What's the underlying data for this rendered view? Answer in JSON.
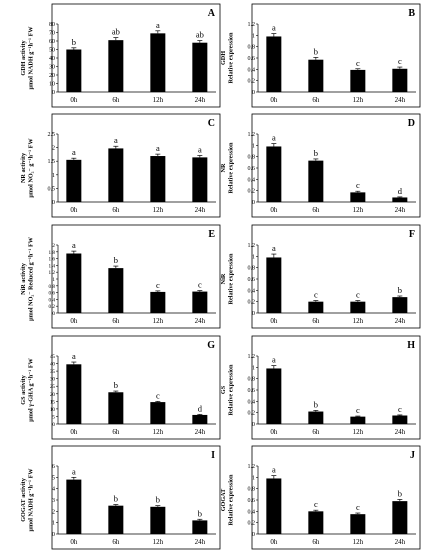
{
  "chart_data": [
    {
      "panel": "A",
      "type": "bar",
      "categories": [
        "0h",
        "6h",
        "12h",
        "24h"
      ],
      "values": [
        50,
        61,
        69,
        58
      ],
      "errors": [
        2,
        3,
        3,
        2.5
      ],
      "letters": [
        "b",
        "ab",
        "a",
        "ab"
      ],
      "ylabel": "GDH activity\nμmol NADH g⁻¹h⁻¹ FW",
      "ylim": [
        0,
        80
      ],
      "yticks": [
        0,
        10,
        20,
        30,
        40,
        50,
        60,
        70,
        80
      ],
      "ytick_labels": [
        "0",
        "10",
        "20",
        "30",
        "40",
        "50",
        "60",
        "70",
        "80"
      ]
    },
    {
      "panel": "B",
      "type": "bar",
      "categories": [
        "0h",
        "6h",
        "12h",
        "24h"
      ],
      "values": [
        0.98,
        0.57,
        0.39,
        0.41
      ],
      "errors": [
        0.05,
        0.04,
        0.02,
        0.03
      ],
      "letters": [
        "a",
        "b",
        "c",
        "c"
      ],
      "ylabel": "GDH\nRelative expression",
      "ylim": [
        0,
        1.2
      ],
      "yticks": [
        0,
        0.2,
        0.4,
        0.6,
        0.8,
        1,
        1.2
      ],
      "ytick_labels": [
        "0",
        "0.2",
        "0.4",
        "0.6",
        "0.8",
        "1",
        "1.2"
      ]
    },
    {
      "panel": "C",
      "type": "bar",
      "categories": [
        "0h",
        "6h",
        "12h",
        "24h"
      ],
      "values": [
        1.55,
        1.97,
        1.69,
        1.64
      ],
      "errors": [
        0.06,
        0.08,
        0.07,
        0.07
      ],
      "letters": [
        "a",
        "a",
        "a",
        "a"
      ],
      "ylabel": "NR activity\nμmol NO₂⁻ g⁻¹h⁻¹ FW",
      "ylim": [
        0,
        2.5
      ],
      "yticks": [
        0,
        0.5,
        1,
        1.5,
        2,
        2.5
      ],
      "ytick_labels": [
        "0",
        "0.5",
        "1",
        "1.5",
        "2",
        "2.5"
      ]
    },
    {
      "panel": "D",
      "type": "bar",
      "categories": [
        "0h",
        "6h",
        "12h",
        "24h"
      ],
      "values": [
        0.98,
        0.73,
        0.17,
        0.08
      ],
      "errors": [
        0.05,
        0.03,
        0.02,
        0.01
      ],
      "letters": [
        "a",
        "b",
        "c",
        "d"
      ],
      "ylabel": "NR\nRelative expression",
      "ylim": [
        0,
        1.2
      ],
      "yticks": [
        0,
        0.2,
        0.4,
        0.6,
        0.8,
        1,
        1.2
      ],
      "ytick_labels": [
        "0",
        "0.2",
        "0.4",
        "0.6",
        "0.8",
        "1",
        "1.2"
      ]
    },
    {
      "panel": "E",
      "type": "bar",
      "categories": [
        "0h",
        "6h",
        "12h",
        "24h"
      ],
      "values": [
        1.75,
        1.32,
        0.62,
        0.63
      ],
      "errors": [
        0.07,
        0.06,
        0.03,
        0.03
      ],
      "letters": [
        "a",
        "b",
        "c",
        "c"
      ],
      "ylabel": "NiR activity\nμmol NO₂⁻ Reduced g⁻¹h⁻¹ FW",
      "ylim": [
        0,
        2
      ],
      "yticks": [
        0,
        0.2,
        0.4,
        0.6,
        0.8,
        1,
        1.2,
        1.4,
        1.6,
        1.8,
        2
      ],
      "ytick_labels": [
        "0",
        "0.2",
        "0.4",
        "0.6",
        "0.8",
        "1",
        "1.2",
        "1.4",
        "1.6",
        "1.8",
        "2"
      ]
    },
    {
      "panel": "F",
      "type": "bar",
      "categories": [
        "0h",
        "6h",
        "12h",
        "24h"
      ],
      "values": [
        0.98,
        0.2,
        0.2,
        0.28
      ],
      "errors": [
        0.06,
        0.02,
        0.02,
        0.02
      ],
      "letters": [
        "a",
        "c",
        "c",
        "b"
      ],
      "ylabel": "NiR\nRelative expression",
      "ylim": [
        0,
        1.2
      ],
      "yticks": [
        0,
        0.2,
        0.4,
        0.6,
        0.8,
        1,
        1.2
      ],
      "ytick_labels": [
        "0",
        "0.2",
        "0.4",
        "0.6",
        "0.8",
        "1",
        "1.2"
      ]
    },
    {
      "panel": "G",
      "type": "bar",
      "categories": [
        "0h",
        "6h",
        "12h",
        "24h"
      ],
      "values": [
        39.5,
        21,
        14.5,
        6
      ],
      "errors": [
        1.5,
        0.8,
        0.5,
        0.4
      ],
      "letters": [
        "a",
        "b",
        "c",
        "d"
      ],
      "ylabel": "GS activity\nμmol γ-GHA g⁻¹h⁻¹ FW",
      "ylim": [
        0,
        45
      ],
      "yticks": [
        0,
        5,
        10,
        15,
        20,
        25,
        30,
        35,
        40,
        45
      ],
      "ytick_labels": [
        "0",
        "5",
        "10",
        "15",
        "20",
        "25",
        "30",
        "35",
        "40",
        "45"
      ]
    },
    {
      "panel": "H",
      "type": "bar",
      "categories": [
        "0h",
        "6h",
        "12h",
        "24h"
      ],
      "values": [
        0.98,
        0.22,
        0.13,
        0.15
      ],
      "errors": [
        0.05,
        0.02,
        0.01,
        0.01
      ],
      "letters": [
        "a",
        "b",
        "c",
        "c"
      ],
      "ylabel": "GS\nRelative expression",
      "ylim": [
        0,
        1.2
      ],
      "yticks": [
        0,
        0.2,
        0.4,
        0.6,
        0.8,
        1,
        1.2
      ],
      "ytick_labels": [
        "0",
        "0.2",
        "0.4",
        "0.6",
        "0.8",
        "1",
        "1.2"
      ]
    },
    {
      "panel": "I",
      "type": "bar",
      "categories": [
        "0h",
        "6h",
        "12h",
        "24h"
      ],
      "values": [
        4.8,
        2.5,
        2.4,
        1.2
      ],
      "errors": [
        0.2,
        0.1,
        0.1,
        0.1
      ],
      "letters": [
        "a",
        "b",
        "b",
        "b"
      ],
      "ylabel": "GOGAT activity\nμmol NADH g⁻¹h⁻¹ FW",
      "ylim": [
        0,
        6
      ],
      "yticks": [
        0,
        1,
        2,
        3,
        4,
        5,
        6
      ],
      "ytick_labels": [
        "0",
        "1",
        "2",
        "3",
        "4",
        "5",
        "6"
      ]
    },
    {
      "panel": "J",
      "type": "bar",
      "categories": [
        "0h",
        "6h",
        "12h",
        "24h"
      ],
      "values": [
        0.98,
        0.4,
        0.35,
        0.58
      ],
      "errors": [
        0.05,
        0.02,
        0.02,
        0.03
      ],
      "letters": [
        "a",
        "c",
        "c",
        "b"
      ],
      "ylabel": "GOGAT\nRelative expression",
      "ylim": [
        0,
        1.2
      ],
      "yticks": [
        0,
        0.2,
        0.4,
        0.6,
        0.8,
        1,
        1.2
      ],
      "ytick_labels": [
        "0",
        "0.2",
        "0.4",
        "0.6",
        "0.8",
        "1",
        "1.2"
      ]
    }
  ]
}
